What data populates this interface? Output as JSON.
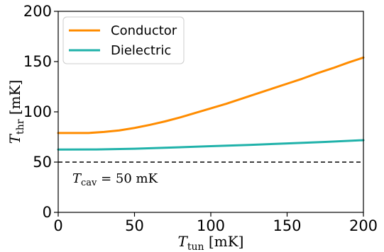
{
  "chart_data": {
    "type": "line",
    "x_label": {
      "symbol": "T",
      "subscript": "tun",
      "unit": " [mK]"
    },
    "y_label": {
      "symbol": "T",
      "subscript": "thr",
      "unit": " [mK]"
    },
    "xlim": [
      0,
      200
    ],
    "ylim": [
      0,
      200
    ],
    "x_ticks": [
      "0",
      "50",
      "100",
      "150",
      "200"
    ],
    "y_ticks": [
      "0",
      "50",
      "100",
      "150",
      "200"
    ],
    "grid": false,
    "legend": {
      "position": "top-left"
    },
    "colors": {
      "conductor": "#ff8c00",
      "dielectric": "#20b2aa",
      "reference": "#000000"
    },
    "series": [
      {
        "name": "Conductor",
        "color": "#ff8c00",
        "x": [
          0,
          10,
          20,
          30,
          40,
          50,
          60,
          70,
          80,
          90,
          100,
          110,
          120,
          130,
          140,
          150,
          160,
          170,
          180,
          190,
          200
        ],
        "y": [
          79,
          79,
          79,
          80,
          81.5,
          84,
          87,
          90.5,
          94.5,
          99,
          103.5,
          108,
          113,
          118,
          123,
          128,
          133,
          138.5,
          143.5,
          149,
          154
        ]
      },
      {
        "name": "Dielectric",
        "color": "#20b2aa",
        "x": [
          0,
          25,
          50,
          75,
          100,
          125,
          150,
          175,
          200
        ],
        "y": [
          62.5,
          62.6,
          63.3,
          64.5,
          65.8,
          67.1,
          68.6,
          70.1,
          71.8
        ]
      }
    ],
    "reference_line": {
      "y": 50,
      "style": "dashed",
      "label": {
        "symbol": "T",
        "subscript": "cav",
        "text": " = 50 mK"
      }
    }
  }
}
